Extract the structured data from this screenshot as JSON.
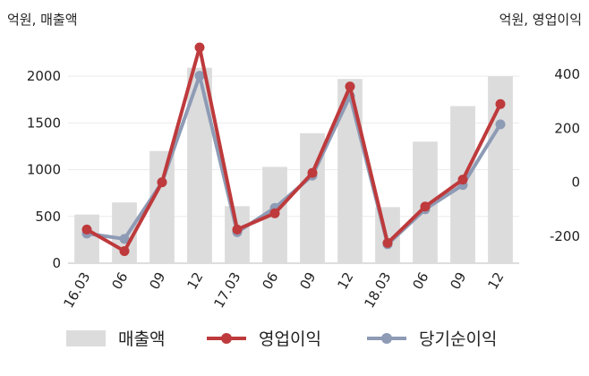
{
  "chart_data": {
    "type": "bar",
    "left_unit_label": "억원, 매출액",
    "right_unit_label": "억원, 영업이익",
    "categories": [
      "16.03",
      "06",
      "09",
      "12",
      "17.03",
      "06",
      "09",
      "12",
      "18.03",
      "06",
      "09",
      "12"
    ],
    "left_axis": {
      "ylim": [
        0,
        2250
      ],
      "ticks": [
        0,
        500,
        1000,
        1500,
        2000
      ]
    },
    "right_axis": {
      "ylim": [
        -300,
        480
      ],
      "ticks": [
        -200,
        0,
        200,
        400
      ]
    },
    "grid": true,
    "legend_position": "bottom",
    "series": [
      {
        "name": "매출액",
        "type": "bar",
        "axis": "left",
        "color": "#dcdcdc",
        "values": [
          520,
          650,
          1200,
          2090,
          610,
          1030,
          1390,
          1970,
          600,
          1300,
          1680,
          2000
        ]
      },
      {
        "name": "영업이익",
        "type": "line",
        "axis": "right",
        "color": "#be3a3c",
        "values": [
          -175,
          -255,
          0,
          500,
          -175,
          -115,
          35,
          355,
          -225,
          -90,
          10,
          290
        ]
      },
      {
        "name": "당기순이익",
        "type": "line",
        "axis": "right",
        "color": "#8e9bb5",
        "values": [
          -190,
          -210,
          0,
          395,
          -185,
          -95,
          25,
          320,
          -230,
          -100,
          -10,
          215
        ]
      }
    ]
  }
}
